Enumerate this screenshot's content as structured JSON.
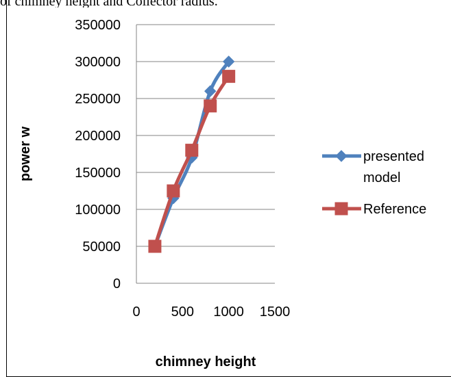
{
  "header_fragment": "of chimney height and Collector radius.",
  "chart_data": {
    "type": "line",
    "title": "",
    "xlabel": "chimney height",
    "ylabel": "power   w",
    "xlim": [
      0,
      1500
    ],
    "ylim": [
      0,
      350000
    ],
    "xticks": [
      "0",
      "500",
      "1000",
      "1500"
    ],
    "yticks": [
      "0",
      "50000",
      "100000",
      "150000",
      "200000",
      "250000",
      "300000",
      "350000"
    ],
    "grid": "horizontal",
    "legend_position": "right",
    "series": [
      {
        "name": "presented model",
        "legend_lines": [
          "presented",
          "model"
        ],
        "color": "#4F81BD",
        "marker": "diamond",
        "x": [
          200,
          400,
          600,
          800,
          1000
        ],
        "y": [
          50000,
          115000,
          170000,
          260000,
          300000
        ]
      },
      {
        "name": "Reference",
        "legend_lines": [
          "Reference"
        ],
        "color": "#C0504D",
        "marker": "square",
        "x": [
          200,
          400,
          600,
          800,
          1000
        ],
        "y": [
          50000,
          125000,
          180000,
          240000,
          280000
        ]
      }
    ]
  }
}
